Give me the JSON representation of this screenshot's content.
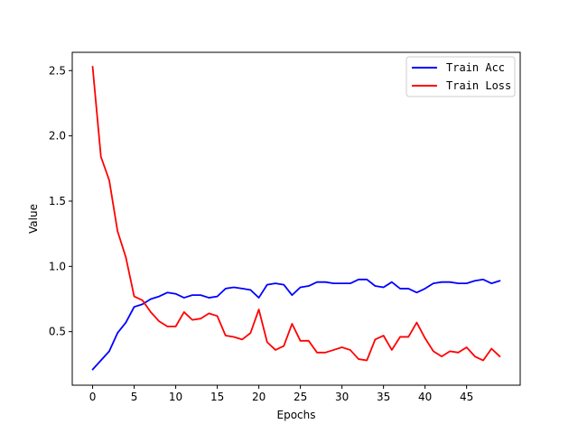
{
  "chart_data": {
    "type": "line",
    "xlabel": "Epochs",
    "ylabel": "Value",
    "xlim": [
      -2.45,
      51.45
    ],
    "ylim": [
      0.09,
      2.64
    ],
    "xticks": [
      0,
      5,
      10,
      15,
      20,
      25,
      30,
      35,
      40,
      45
    ],
    "yticks": [
      0.5,
      1.0,
      1.5,
      2.0,
      2.5
    ],
    "ytick_labels": [
      "0.5",
      "1.0",
      "1.5",
      "2.0",
      "2.5"
    ],
    "grid": false,
    "legend_position": "top-right",
    "x": [
      0,
      1,
      2,
      3,
      4,
      5,
      6,
      7,
      8,
      9,
      10,
      11,
      12,
      13,
      14,
      15,
      16,
      17,
      18,
      19,
      20,
      21,
      22,
      23,
      24,
      25,
      26,
      27,
      28,
      29,
      30,
      31,
      32,
      33,
      34,
      35,
      36,
      37,
      38,
      39,
      40,
      41,
      42,
      43,
      44,
      45,
      46,
      47,
      48,
      49
    ],
    "series": [
      {
        "name": "Train Acc",
        "color": "#0000ff",
        "values": [
          0.21,
          0.28,
          0.35,
          0.49,
          0.57,
          0.69,
          0.71,
          0.75,
          0.77,
          0.8,
          0.79,
          0.76,
          0.78,
          0.78,
          0.76,
          0.77,
          0.83,
          0.84,
          0.83,
          0.82,
          0.76,
          0.86,
          0.87,
          0.86,
          0.78,
          0.84,
          0.85,
          0.88,
          0.88,
          0.87,
          0.87,
          0.87,
          0.9,
          0.9,
          0.85,
          0.84,
          0.88,
          0.83,
          0.83,
          0.8,
          0.83,
          0.87,
          0.88,
          0.88,
          0.87,
          0.87,
          0.89,
          0.9,
          0.87,
          0.89
        ]
      },
      {
        "name": "Train Loss",
        "color": "#ff0000",
        "values": [
          2.53,
          1.84,
          1.66,
          1.27,
          1.07,
          0.77,
          0.74,
          0.65,
          0.58,
          0.54,
          0.54,
          0.65,
          0.59,
          0.6,
          0.64,
          0.62,
          0.47,
          0.46,
          0.44,
          0.49,
          0.67,
          0.42,
          0.36,
          0.39,
          0.56,
          0.43,
          0.43,
          0.34,
          0.34,
          0.36,
          0.38,
          0.36,
          0.29,
          0.28,
          0.44,
          0.47,
          0.36,
          0.46,
          0.46,
          0.57,
          0.45,
          0.35,
          0.31,
          0.35,
          0.34,
          0.38,
          0.31,
          0.28,
          0.37,
          0.31
        ]
      }
    ]
  }
}
